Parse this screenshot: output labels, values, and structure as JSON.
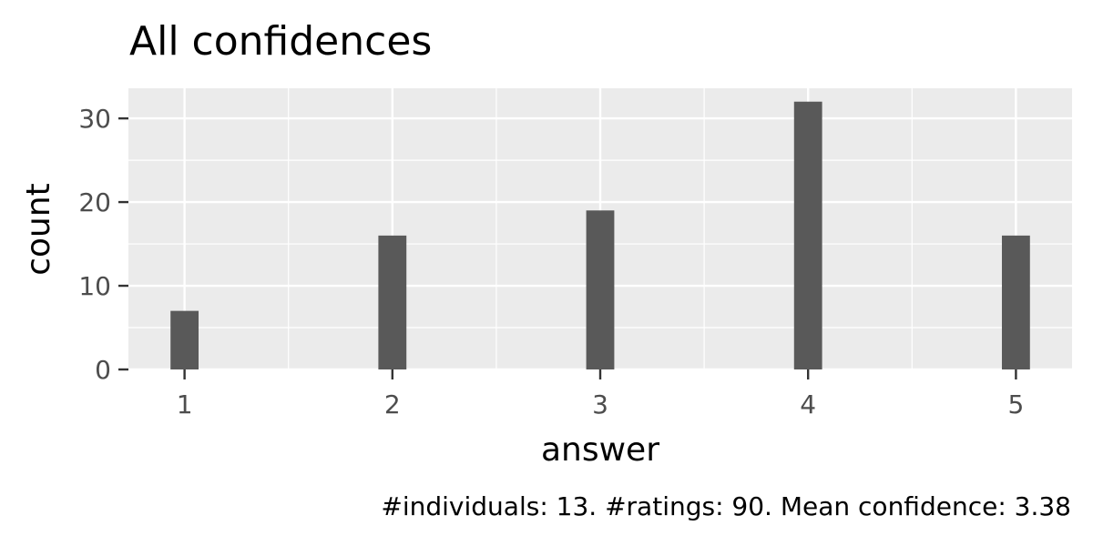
{
  "chart_data": {
    "type": "bar",
    "title": "All confidences",
    "xlabel": "answer",
    "ylabel": "count",
    "caption": "#individuals: 13. #ratings: 90. Mean confidence: 3.38",
    "x": [
      1,
      2,
      3,
      4,
      5
    ],
    "values": [
      7,
      16,
      19,
      32,
      16
    ],
    "x_ticks": [
      "1",
      "2",
      "3",
      "4",
      "5"
    ],
    "y_ticks": [
      "0",
      "10",
      "20",
      "30"
    ],
    "xlim": [
      0.73,
      5.27
    ],
    "ylim": [
      0,
      33.6
    ],
    "grid": true,
    "bar_color": "#595959",
    "panel_background": "#ebebeb",
    "grid_color": "#ffffff"
  }
}
